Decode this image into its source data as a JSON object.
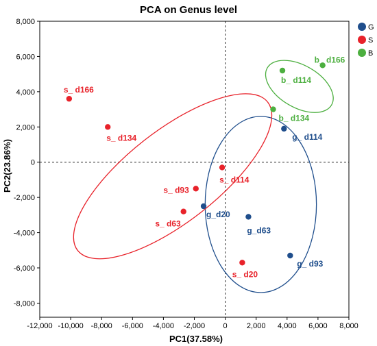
{
  "chart_data": {
    "type": "scatter",
    "title": "PCA on Genus level",
    "xlabel": "PC1(37.58%)",
    "ylabel": "PC2(23.86%)",
    "xlim": [
      -12000,
      8000
    ],
    "ylim": [
      -8800,
      8000
    ],
    "xticks": [
      -12000,
      -10000,
      -8000,
      -6000,
      -4000,
      -2000,
      0,
      2000,
      4000,
      6000,
      8000
    ],
    "xtick_labels": [
      "-12,000",
      "-10,000",
      "-8,000",
      "-6,000",
      "-4,000",
      "-2,000",
      "0",
      "2,000",
      "4,000",
      "6,000",
      "8,000"
    ],
    "yticks": [
      8000,
      6000,
      4000,
      2000,
      0,
      -2000,
      -4000,
      -6000,
      -8000
    ],
    "ytick_labels": [
      "8,000",
      "6,000",
      "4,000",
      "2,000",
      "0",
      "-2,000",
      "-4,000",
      "-6,000",
      "-8,000"
    ],
    "reference_lines": {
      "x": 0,
      "y": 0,
      "style": "dotted"
    },
    "legend_position": "top-right, outside plot",
    "series": [
      {
        "name": "G",
        "color": "#1f4e8c",
        "points": [
          {
            "label": "g_ d114",
            "x": 3800,
            "y": 1900
          },
          {
            "label": "g_d20",
            "x": -1400,
            "y": -2500
          },
          {
            "label": "g_d63",
            "x": 1500,
            "y": -3100
          },
          {
            "label": "g_ d93",
            "x": 4200,
            "y": -5300
          }
        ],
        "ellipse": {
          "cx": 2300,
          "cy": -2400,
          "rx": 3600,
          "ry": 5000,
          "angle_deg": 0
        }
      },
      {
        "name": "S",
        "color": "#e8222a",
        "points": [
          {
            "label": "s_ d166",
            "x": -10100,
            "y": 3600
          },
          {
            "label": "s_ d134",
            "x": -7600,
            "y": 2000
          },
          {
            "label": "s_ d114",
            "x": -200,
            "y": -300
          },
          {
            "label": "s_ d93",
            "x": -1900,
            "y": -1500
          },
          {
            "label": "s_ d63",
            "x": -2700,
            "y": -2800
          },
          {
            "label": "s_ d20",
            "x": 1100,
            "y": -5700
          }
        ],
        "ellipse": {
          "cx": -3400,
          "cy": -800,
          "rx": 7800,
          "ry": 2600,
          "angle_deg": -38
        }
      },
      {
        "name": "B",
        "color": "#4caf3f",
        "points": [
          {
            "label": "b_ d166",
            "x": 6300,
            "y": 5500
          },
          {
            "label": "b_ d114",
            "x": 3700,
            "y": 5200
          },
          {
            "label": "b_ d134",
            "x": 3100,
            "y": 3000
          }
        ],
        "ellipse": {
          "cx": 4800,
          "cy": 4300,
          "rx": 2400,
          "ry": 1200,
          "angle_deg": 30
        }
      }
    ]
  }
}
